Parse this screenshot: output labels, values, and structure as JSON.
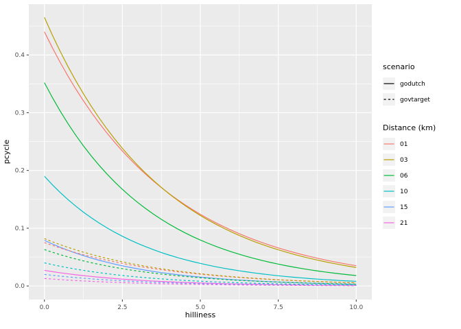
{
  "chart_data": {
    "type": "line",
    "title": "",
    "xlabel": "hilliness",
    "ylabel": "pcycle",
    "xlim": [
      -0.5,
      10.5
    ],
    "ylim": [
      -0.0235,
      0.488
    ],
    "grid": true,
    "legend_position": "right",
    "panel_bg": "#EBEBEB",
    "grid_color": "#FFFFFF",
    "axis_text_color": "#4D4D4D",
    "axis_title_color": "#000000",
    "tick_mark_color": "#333333",
    "legend_key_bg": "#F2F2F2",
    "x_ticks": {
      "values": [
        0,
        2.5,
        5,
        7.5,
        10
      ],
      "labels": [
        "0.0",
        "2.5",
        "5.0",
        "7.5",
        "10.0"
      ],
      "minor": [
        1.25,
        3.75,
        6.25,
        8.75
      ]
    },
    "y_ticks": {
      "values": [
        0,
        0.1,
        0.2,
        0.3,
        0.4
      ],
      "labels": [
        "0.0",
        "0.1",
        "0.2",
        "0.3",
        "0.4"
      ],
      "minor": [
        0.05,
        0.15,
        0.25,
        0.35,
        0.45
      ]
    },
    "x": [
      0,
      1,
      2,
      3,
      4,
      5,
      6,
      7,
      8,
      9,
      10
    ],
    "series": [
      {
        "name": "godutch-01",
        "scenario": "godutch",
        "distance": "01",
        "color": "#F8766D",
        "linetype": "solid",
        "values": [
          0.44,
          0.3416,
          0.2652,
          0.2059,
          0.1599,
          0.1241,
          0.0964,
          0.0748,
          0.0581,
          0.0451,
          0.035
        ]
      },
      {
        "name": "godutch-03",
        "scenario": "godutch",
        "distance": "03",
        "color": "#B79F00",
        "linetype": "solid",
        "values": [
          0.465,
          0.3559,
          0.2724,
          0.2085,
          0.1596,
          0.1221,
          0.0935,
          0.0715,
          0.0548,
          0.0419,
          0.032
        ]
      },
      {
        "name": "godutch-06",
        "scenario": "godutch",
        "distance": "06",
        "color": "#00BA38",
        "linetype": "solid",
        "values": [
          0.352,
          0.2614,
          0.1942,
          0.1442,
          0.1071,
          0.0795,
          0.0591,
          0.0439,
          0.0326,
          0.0242,
          0.018
        ]
      },
      {
        "name": "godutch-10",
        "scenario": "godutch",
        "distance": "10",
        "color": "#00BFC4",
        "linetype": "solid",
        "values": [
          0.19,
          0.1384,
          0.1008,
          0.0735,
          0.0535,
          0.039,
          0.0284,
          0.0207,
          0.0151,
          0.011,
          0.008
        ]
      },
      {
        "name": "godutch-15",
        "scenario": "godutch",
        "distance": "15",
        "color": "#619CFF",
        "linetype": "solid",
        "values": [
          0.079,
          0.057,
          0.0411,
          0.0296,
          0.0213,
          0.0154,
          0.0111,
          0.008,
          0.0058,
          0.0042,
          0.003
        ]
      },
      {
        "name": "godutch-21",
        "scenario": "godutch",
        "distance": "21",
        "color": "#F564E3",
        "linetype": "solid",
        "values": [
          0.027,
          0.0194,
          0.014,
          0.01,
          0.0072,
          0.0052,
          0.0037,
          0.0027,
          0.0019,
          0.0014,
          0.001
        ]
      },
      {
        "name": "govtarget-01",
        "scenario": "govtarget",
        "distance": "01",
        "color": "#F8766D",
        "linetype": "dashed",
        "values": [
          0.075,
          0.0578,
          0.0445,
          0.0342,
          0.0264,
          0.0203,
          0.0156,
          0.012,
          0.0093,
          0.0071,
          0.0055
        ]
      },
      {
        "name": "govtarget-03",
        "scenario": "govtarget",
        "distance": "03",
        "color": "#B79F00",
        "linetype": "dashed",
        "values": [
          0.082,
          0.0626,
          0.0478,
          0.0365,
          0.0278,
          0.0212,
          0.0162,
          0.0124,
          0.0094,
          0.0072,
          0.0055
        ]
      },
      {
        "name": "govtarget-06",
        "scenario": "govtarget",
        "distance": "06",
        "color": "#00BA38",
        "linetype": "dashed",
        "values": [
          0.063,
          0.0468,
          0.0347,
          0.0258,
          0.0191,
          0.0142,
          0.0105,
          0.0078,
          0.0058,
          0.0043,
          0.0032
        ]
      },
      {
        "name": "govtarget-10",
        "scenario": "govtarget",
        "distance": "10",
        "color": "#00BFC4",
        "linetype": "dashed",
        "values": [
          0.04,
          0.0292,
          0.0213,
          0.0155,
          0.0113,
          0.0082,
          0.006,
          0.0044,
          0.0032,
          0.0023,
          0.0017
        ]
      },
      {
        "name": "govtarget-15",
        "scenario": "govtarget",
        "distance": "15",
        "color": "#619CFF",
        "linetype": "dashed",
        "values": [
          0.02,
          0.0145,
          0.0105,
          0.0076,
          0.0055,
          0.004,
          0.0029,
          0.0021,
          0.0015,
          0.0011,
          0.0008
        ]
      },
      {
        "name": "govtarget-21",
        "scenario": "govtarget",
        "distance": "21",
        "color": "#F564E3",
        "linetype": "dashed",
        "values": [
          0.013,
          0.0094,
          0.0068,
          0.0049,
          0.0035,
          0.0026,
          0.0018,
          0.0013,
          0.001,
          0.0007,
          0.0005
        ]
      }
    ],
    "legend": {
      "scenario": {
        "title": "scenario",
        "entries": [
          {
            "label": "godutch",
            "linetype": "solid"
          },
          {
            "label": "govtarget",
            "linetype": "dashed"
          }
        ]
      },
      "distance": {
        "title": "Distance (km)",
        "entries": [
          {
            "label": "01",
            "color": "#F8766D"
          },
          {
            "label": "03",
            "color": "#B79F00"
          },
          {
            "label": "06",
            "color": "#00BA38"
          },
          {
            "label": "10",
            "color": "#00BFC4"
          },
          {
            "label": "15",
            "color": "#619CFF"
          },
          {
            "label": "21",
            "color": "#F564E3"
          }
        ]
      }
    }
  }
}
